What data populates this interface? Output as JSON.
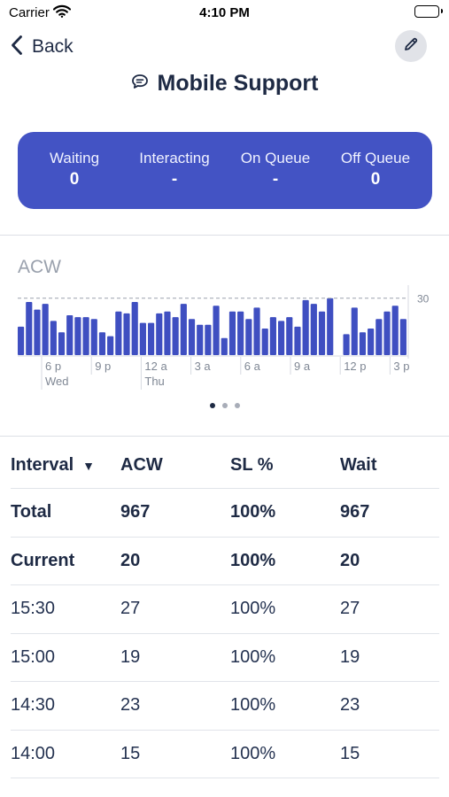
{
  "status_bar": {
    "carrier": "Carrier",
    "time": "4:10 PM"
  },
  "nav": {
    "back_label": "Back",
    "edit_icon": "pencil-icon"
  },
  "title": {
    "icon": "chat-bubble-icon",
    "text": "Mobile Support"
  },
  "stats": [
    {
      "label": "Waiting",
      "value": "0"
    },
    {
      "label": "Interacting",
      "value": "-"
    },
    {
      "label": "On Queue",
      "value": "-"
    },
    {
      "label": "Off Queue",
      "value": "0"
    }
  ],
  "chart_data": {
    "type": "bar",
    "title": "ACW",
    "threshold": 30,
    "threshold_label": "30",
    "ylim": [
      0,
      35
    ],
    "x_ticks": [
      {
        "label": "6 p",
        "sublabel": "Wed"
      },
      {
        "label": "9 p",
        "sublabel": ""
      },
      {
        "label": "12 a",
        "sublabel": "Thu"
      },
      {
        "label": "3 a",
        "sublabel": ""
      },
      {
        "label": "6 a",
        "sublabel": ""
      },
      {
        "label": "9 a",
        "sublabel": ""
      },
      {
        "label": "12 p",
        "sublabel": ""
      },
      {
        "label": "3 p",
        "sublabel": ""
      }
    ],
    "values": [
      15,
      28,
      24,
      27,
      18,
      12,
      21,
      20,
      20,
      19,
      12,
      10,
      23,
      22,
      28,
      17,
      17,
      22,
      23,
      20,
      27,
      19,
      16,
      16,
      26,
      9,
      23,
      23,
      19,
      25,
      14,
      20,
      18,
      20,
      15,
      29,
      27,
      23,
      30,
      0,
      11,
      25,
      12,
      14,
      19,
      23,
      26,
      19
    ],
    "colors": {
      "bar": "#3f4fc1",
      "grid": "#9aa1ad",
      "axis": "#d7dae1",
      "label": "#7f8794"
    }
  },
  "pagination": {
    "count": 3,
    "active": 0
  },
  "table": {
    "columns": [
      "Interval",
      "ACW",
      "SL %",
      "Wait"
    ],
    "rows": [
      [
        "Total",
        "967",
        "100%",
        "967"
      ],
      [
        "Current",
        "20",
        "100%",
        "20"
      ],
      [
        "15:30",
        "27",
        "100%",
        "27"
      ],
      [
        "15:00",
        "19",
        "100%",
        "19"
      ],
      [
        "14:30",
        "23",
        "100%",
        "23"
      ],
      [
        "14:00",
        "15",
        "100%",
        "15"
      ]
    ]
  }
}
